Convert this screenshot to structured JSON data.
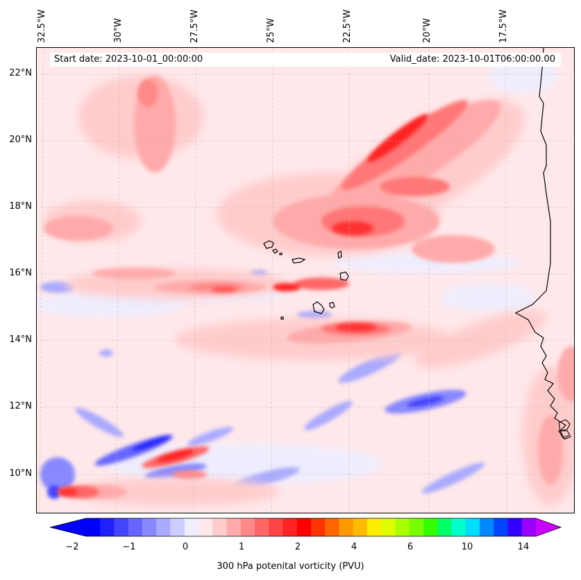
{
  "info": {
    "start_date": "Start date: 2023-10-01_00:00:00",
    "valid_date": "Valid_date: 2023-10-01T06:00:00.00"
  },
  "longitude_labels": [
    "32.5°W",
    "30°W",
    "27.5°W",
    "25°W",
    "22.5°W",
    "20°W",
    "17.5°W"
  ],
  "latitude_labels": [
    "22°N",
    "20°N",
    "18°N",
    "16°N",
    "14°N",
    "12°N",
    "10°N"
  ],
  "colorbar": {
    "label": "300 hPa potenital vorticity (PVU)",
    "ticks": [
      "−2",
      "−1",
      "0",
      "1",
      "2",
      "4",
      "6",
      "10",
      "14"
    ],
    "colors": [
      "#0000ff",
      "#2020ff",
      "#4444ff",
      "#6666ff",
      "#8888ff",
      "#aaaaff",
      "#ccccff",
      "#eeeeff",
      "#ffe8ea",
      "#ffcccc",
      "#ffaaaa",
      "#ff8888",
      "#ff6666",
      "#ff4444",
      "#ff2222",
      "#ff0000",
      "#ff3300",
      "#ff6600",
      "#ff9900",
      "#ffbb00",
      "#ffee00",
      "#ddff00",
      "#aaff00",
      "#77ff00",
      "#33ff00",
      "#00ff66",
      "#00ffcc",
      "#00ddff",
      "#0088ff",
      "#0044ff",
      "#3300ff",
      "#9900ff"
    ],
    "extend_low_color": "#0000ff",
    "extend_high_color": "#cc00ff"
  },
  "map": {
    "field": "300 hPa potential vorticity",
    "region": "Eastern tropical Atlantic, Cape Verde islands, West African coast",
    "coastline_color": "#000000"
  }
}
